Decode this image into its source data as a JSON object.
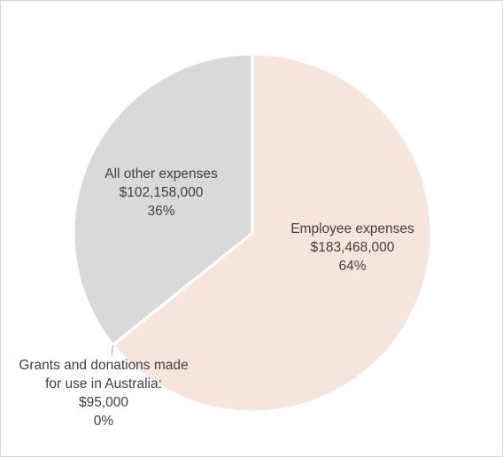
{
  "chart_data": {
    "type": "pie",
    "title": "",
    "slices": [
      {
        "label_lines": [
          "Employee expenses"
        ],
        "value": 183468000,
        "value_text": "$183,468,000",
        "percent_text": "64%",
        "color": "#f7e4dd"
      },
      {
        "label_lines": [
          "Grants and donations made",
          "for use in Australia:"
        ],
        "value": 95000,
        "value_text": "$95,000",
        "percent_text": "0%",
        "color": "#f2f2f2"
      },
      {
        "label_lines": [
          "All other expenses"
        ],
        "value": 102158000,
        "value_text": "$102,158,000",
        "percent_text": "36%",
        "color": "#d9d9d9"
      }
    ],
    "start_angle": "12 o'clock",
    "direction": "clockwise",
    "legend": "none",
    "slice_border_color": "#ffffff",
    "leader_line_color": "#a6a6a6"
  }
}
